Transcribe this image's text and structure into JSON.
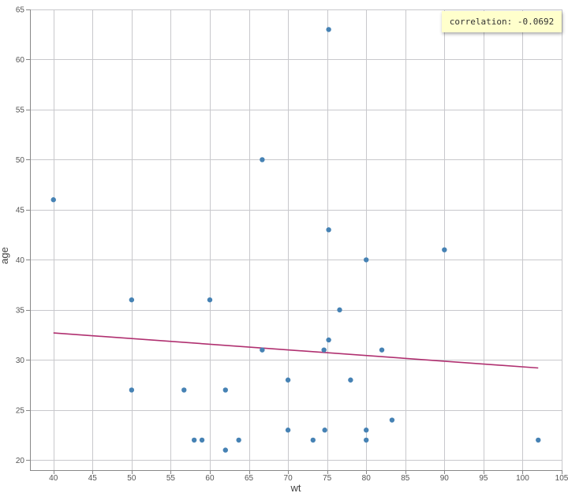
{
  "chart_data": {
    "type": "scatter",
    "xlabel": "wt",
    "ylabel": "age",
    "xlim": [
      37,
      105
    ],
    "ylim": [
      19,
      65
    ],
    "xticks": [
      40,
      45,
      50,
      55,
      60,
      65,
      70,
      75,
      80,
      85,
      90,
      95,
      100,
      105
    ],
    "yticks": [
      20,
      25,
      30,
      35,
      40,
      45,
      50,
      55,
      60,
      65
    ],
    "grid": true,
    "point_color": "#4682b4",
    "line_color": "#b03070",
    "points": [
      {
        "x": 40,
        "y": 46
      },
      {
        "x": 50,
        "y": 36
      },
      {
        "x": 50,
        "y": 27
      },
      {
        "x": 56.7,
        "y": 27
      },
      {
        "x": 58,
        "y": 22
      },
      {
        "x": 59,
        "y": 22
      },
      {
        "x": 60,
        "y": 36
      },
      {
        "x": 62,
        "y": 27
      },
      {
        "x": 62,
        "y": 21
      },
      {
        "x": 63.7,
        "y": 22
      },
      {
        "x": 66.7,
        "y": 50
      },
      {
        "x": 66.7,
        "y": 31
      },
      {
        "x": 70,
        "y": 28
      },
      {
        "x": 70,
        "y": 23
      },
      {
        "x": 73.2,
        "y": 22
      },
      {
        "x": 74.6,
        "y": 31
      },
      {
        "x": 74.7,
        "y": 23
      },
      {
        "x": 75.2,
        "y": 63
      },
      {
        "x": 75.2,
        "y": 43
      },
      {
        "x": 75.2,
        "y": 32
      },
      {
        "x": 76.6,
        "y": 35
      },
      {
        "x": 78,
        "y": 28
      },
      {
        "x": 80,
        "y": 40
      },
      {
        "x": 80,
        "y": 23
      },
      {
        "x": 80,
        "y": 22
      },
      {
        "x": 82,
        "y": 31
      },
      {
        "x": 83.3,
        "y": 24
      },
      {
        "x": 90,
        "y": 41
      },
      {
        "x": 102,
        "y": 22
      }
    ],
    "trend_line": {
      "x": [
        40,
        102
      ],
      "y": [
        32.7,
        29.2
      ]
    },
    "annotation": "correlation: -0.0692"
  }
}
